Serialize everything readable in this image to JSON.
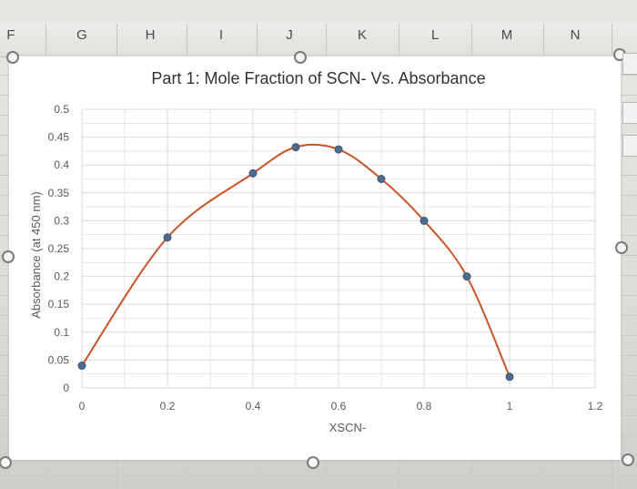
{
  "columns": [
    "F",
    "G",
    "H",
    "I",
    "J",
    "K",
    "L",
    "M",
    "N"
  ],
  "colors": {
    "line": "#c8542a",
    "marker": "#4f6a8f",
    "grid": "#d9d9d9",
    "axis_text": "#595959"
  },
  "chart_data": {
    "type": "scatter",
    "title": "Part 1: Mole Fraction of SCN- Vs. Absorbance",
    "xlabel": "XSCN-",
    "ylabel": "Absorbance (at 450 nm)",
    "xlim": [
      0,
      1.2
    ],
    "ylim": [
      0,
      0.5
    ],
    "xticks": [
      "0",
      "0.2",
      "0.4",
      "0.6",
      "0.8",
      "1",
      "1.2"
    ],
    "yticks": [
      "0",
      "0.05",
      "0.1",
      "0.15",
      "0.2",
      "0.25",
      "0.3",
      "0.35",
      "0.4",
      "0.45",
      "0.5"
    ],
    "grid": true,
    "smoothed_line": true,
    "series": [
      {
        "x": [
          0,
          0.2,
          0.4,
          0.5,
          0.6,
          0.7,
          0.8,
          0.9,
          1.0
        ],
        "y": [
          0.04,
          0.27,
          0.385,
          0.432,
          0.428,
          0.375,
          0.3,
          0.2,
          0.02
        ]
      }
    ]
  }
}
